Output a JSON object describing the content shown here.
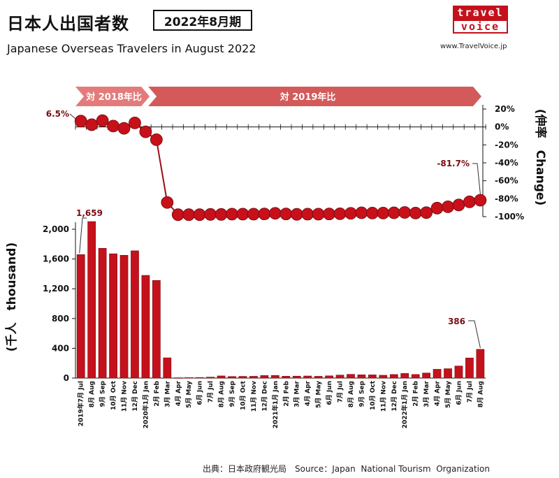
{
  "header": {
    "title": "日本人出国者数",
    "period": "2022年8月期",
    "subtitle": "Japanese Overseas Travelers in August 2022"
  },
  "logo": {
    "line1": "travel",
    "line2": "voice",
    "site": "www.TravelVoice.jp"
  },
  "source": "出典：日本政府観光局　Source：Japan  National Tourism  Organization",
  "colors": {
    "bar": "#c4111b",
    "bar_edge": "#7a0d10",
    "dot": "#c8101a",
    "band_2018": "#e47a7a",
    "band_2019": "#d45a5a"
  },
  "chart_data": [
    {
      "type": "line",
      "name": "change",
      "ylabel": "(伸率　Change)",
      "ylim": [
        -100,
        20
      ],
      "yticks": [
        20,
        0,
        -20,
        -40,
        -60,
        -80,
        -100
      ],
      "yticklabels": [
        "20%",
        "0%",
        "-20%",
        "-40%",
        "-60%",
        "-80%",
        "-100%"
      ],
      "bands": [
        {
          "label": "対 2018年比",
          "from_index": 0,
          "to_index": 6
        },
        {
          "label": "対 2019年比",
          "from_index": 7,
          "to_index": 37
        }
      ],
      "values": [
        6.5,
        2.5,
        7.0,
        1.0,
        -1.5,
        4.5,
        -5.4,
        -14.2,
        -84.2,
        -97.8,
        -97.8,
        -97.8,
        -97.5,
        -97.5,
        -97.2,
        -97.2,
        -97.2,
        -97.0,
        -96.3,
        -97.0,
        -97.4,
        -97.2,
        -97.2,
        -97.0,
        -96.8,
        -96.3,
        -95.7,
        -96.0,
        -96.0,
        -95.7,
        -95.3,
        -96.0,
        -95.5,
        -90.5,
        -89.0,
        -87.0,
        -83.5,
        -81.7
      ],
      "annotations": [
        {
          "index": 0,
          "text": "6.5%"
        },
        {
          "index": 37,
          "text": "-81.7%"
        }
      ]
    },
    {
      "type": "bar",
      "name": "travelers",
      "ylabel": "(千人　thousand)",
      "ylim": [
        0,
        2000
      ],
      "yticks": [
        0,
        400,
        800,
        1200,
        1600,
        2000
      ],
      "yticklabels": [
        "0",
        "400",
        "800",
        "1,200",
        "1,600",
        "2,000"
      ],
      "categories": [
        "2019年7月 Jul",
        "8月 Aug",
        "9月 Sep",
        "10月 Oct",
        "11月 Nov",
        "12月 Dec",
        "2020年1月 Jan",
        "2月 Feb",
        "3月 Mar",
        "4月 Apr",
        "5月 May",
        "6月 Jun",
        "7月 Jul",
        "8月 Aug",
        "9月 Sep",
        "10月 Oct",
        "11月 Nov",
        "12月 Dec",
        "2021年1月 Jan",
        "2月 Feb",
        "3月 Mar",
        "4月 Apr",
        "5月 May",
        "6月 Jun",
        "7月 Jul",
        "8月 Aug",
        "9月 Sep",
        "10月 Oct",
        "11月 Nov",
        "12月 Dec",
        "2022年1月 Jan",
        "2月 Feb",
        "3月 Mar",
        "4月 Apr",
        "5月 May",
        "6月 Jun",
        "7月 Jul",
        "8月 Aug"
      ],
      "values": [
        1659,
        2103,
        1744,
        1670,
        1650,
        1710,
        1380,
        1312,
        272,
        4,
        6,
        7,
        13,
        29,
        21,
        23,
        24,
        34,
        36,
        25,
        26,
        28,
        24,
        30,
        40,
        50,
        44,
        43,
        38,
        48,
        62,
        48,
        68,
        118,
        126,
        162,
        270,
        386
      ],
      "annotations": [
        {
          "index": 0,
          "text": "1,659"
        },
        {
          "index": 37,
          "text": "386"
        }
      ]
    }
  ]
}
